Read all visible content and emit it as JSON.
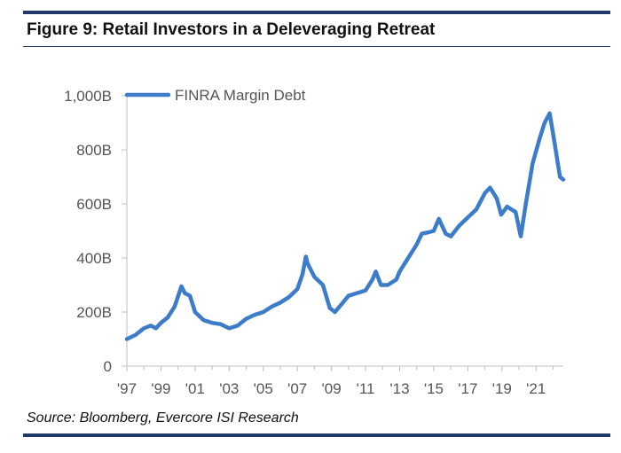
{
  "header": {
    "title": "Figure 9: Retail Investors in a Deleveraging Retreat"
  },
  "footer": {
    "source": "Source: Bloomberg, Evercore ISI Research"
  },
  "colors": {
    "rule": "#1f3a6a",
    "series": "#3d7cc9",
    "axis": "#bfbfbf",
    "text": "#555555"
  },
  "chart_data": {
    "type": "line",
    "title": "Figure 9: Retail Investors in a Deleveraging Retreat",
    "xlabel": "",
    "ylabel": "",
    "ylim": [
      0,
      1000
    ],
    "xlim": [
      1997.0,
      2022.6
    ],
    "grid": false,
    "legend": "top-left",
    "y_ticks": [
      {
        "value": 0,
        "label": "0"
      },
      {
        "value": 200,
        "label": "200B"
      },
      {
        "value": 400,
        "label": "400B"
      },
      {
        "value": 600,
        "label": "600B"
      },
      {
        "value": 800,
        "label": "800B"
      },
      {
        "value": 1000,
        "label": "1,000B"
      }
    ],
    "x_ticks": [
      {
        "value": 1997,
        "label": "'97"
      },
      {
        "value": 1999,
        "label": "'99"
      },
      {
        "value": 2001,
        "label": "'01"
      },
      {
        "value": 2003,
        "label": "'03"
      },
      {
        "value": 2005,
        "label": "'05"
      },
      {
        "value": 2007,
        "label": "'07"
      },
      {
        "value": 2009,
        "label": "'09"
      },
      {
        "value": 2011,
        "label": "'11"
      },
      {
        "value": 2013,
        "label": "'13"
      },
      {
        "value": 2015,
        "label": "'15"
      },
      {
        "value": 2017,
        "label": "'17"
      },
      {
        "value": 2019,
        "label": "'19"
      },
      {
        "value": 2021,
        "label": "'21"
      }
    ],
    "series": [
      {
        "name": "FINRA Margin Debt",
        "points": [
          [
            1997.0,
            100
          ],
          [
            1997.5,
            115
          ],
          [
            1998.0,
            140
          ],
          [
            1998.4,
            150
          ],
          [
            1998.7,
            140
          ],
          [
            1999.0,
            160
          ],
          [
            1999.4,
            180
          ],
          [
            1999.8,
            220
          ],
          [
            2000.2,
            295
          ],
          [
            2000.4,
            270
          ],
          [
            2000.7,
            260
          ],
          [
            2001.0,
            200
          ],
          [
            2001.5,
            170
          ],
          [
            2002.0,
            160
          ],
          [
            2002.5,
            155
          ],
          [
            2003.0,
            140
          ],
          [
            2003.5,
            150
          ],
          [
            2004.0,
            175
          ],
          [
            2004.5,
            190
          ],
          [
            2005.0,
            200
          ],
          [
            2005.5,
            220
          ],
          [
            2006.0,
            235
          ],
          [
            2006.5,
            255
          ],
          [
            2007.0,
            285
          ],
          [
            2007.3,
            340
          ],
          [
            2007.5,
            405
          ],
          [
            2007.6,
            380
          ],
          [
            2008.0,
            330
          ],
          [
            2008.5,
            300
          ],
          [
            2008.9,
            215
          ],
          [
            2009.2,
            200
          ],
          [
            2009.6,
            230
          ],
          [
            2010.0,
            260
          ],
          [
            2010.5,
            270
          ],
          [
            2011.0,
            280
          ],
          [
            2011.4,
            320
          ],
          [
            2011.6,
            350
          ],
          [
            2011.9,
            300
          ],
          [
            2012.3,
            300
          ],
          [
            2012.8,
            320
          ],
          [
            2013.0,
            350
          ],
          [
            2013.5,
            400
          ],
          [
            2014.0,
            450
          ],
          [
            2014.3,
            490
          ],
          [
            2014.7,
            495
          ],
          [
            2015.0,
            500
          ],
          [
            2015.3,
            545
          ],
          [
            2015.7,
            490
          ],
          [
            2016.0,
            480
          ],
          [
            2016.5,
            520
          ],
          [
            2017.0,
            550
          ],
          [
            2017.5,
            580
          ],
          [
            2018.0,
            640
          ],
          [
            2018.3,
            660
          ],
          [
            2018.7,
            620
          ],
          [
            2018.95,
            560
          ],
          [
            2019.3,
            590
          ],
          [
            2019.8,
            570
          ],
          [
            2020.1,
            480
          ],
          [
            2020.4,
            600
          ],
          [
            2020.8,
            750
          ],
          [
            2021.2,
            840
          ],
          [
            2021.5,
            900
          ],
          [
            2021.8,
            935
          ],
          [
            2022.1,
            820
          ],
          [
            2022.4,
            700
          ],
          [
            2022.6,
            690
          ]
        ]
      }
    ]
  }
}
